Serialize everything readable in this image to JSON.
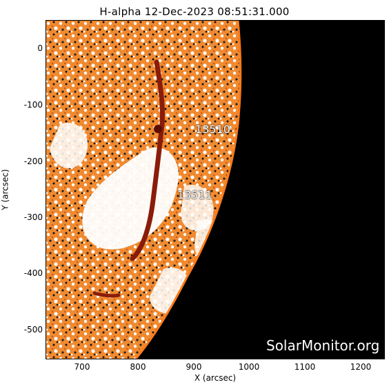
{
  "title": "H-alpha 12-Dec-2023 08:51:31.000",
  "watermark": "SolarMonitor.org",
  "axes": {
    "xlabel": "X (arcsec)",
    "ylabel": "Y (arcsec)",
    "xticks": [
      "700",
      "800",
      "900",
      "1000",
      "1100",
      "1200"
    ],
    "yticks": [
      "0",
      "-100",
      "-200",
      "-300",
      "-400",
      "-500"
    ],
    "xlim": [
      632,
      1240
    ],
    "ylim": [
      -555,
      50
    ]
  },
  "regions": [
    {
      "label": "13510"
    },
    {
      "label": "13511"
    }
  ],
  "colors": {
    "chromosphere": "#e8822c",
    "filament": "#8a1c0a",
    "space": "#000000",
    "background": "#ffffff"
  }
}
